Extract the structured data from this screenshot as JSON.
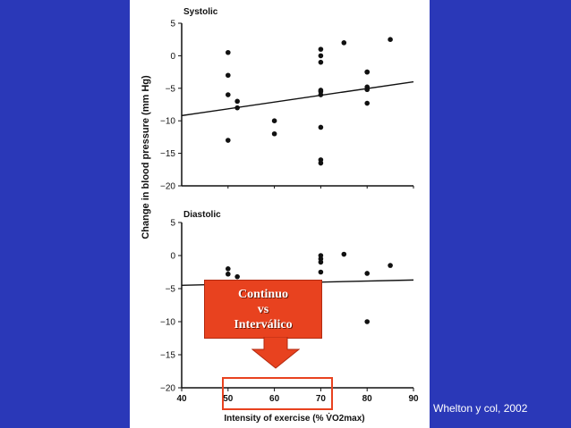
{
  "citation": "Whelton y col, 2002",
  "callout": {
    "line1": "Continuo",
    "line2": "vs",
    "line3": "Interválico",
    "color": "#e8421f"
  },
  "background_color": "#2a38b8",
  "chart_data": [
    {
      "type": "scatter",
      "title": "Systolic",
      "ylabel": "Change in blood pressure (mm Hg)",
      "xlabel": "",
      "xlim": [
        40,
        90
      ],
      "ylim": [
        -20,
        5
      ],
      "yticks": [
        5,
        0,
        -5,
        -10,
        -15,
        -20
      ],
      "x": [
        50,
        50,
        50,
        50,
        52,
        52,
        60,
        60,
        70,
        70,
        70,
        70,
        70,
        70,
        70,
        70,
        70,
        75,
        80,
        80,
        80,
        80,
        80,
        85
      ],
      "y": [
        0.5,
        -3,
        -6,
        -13,
        -7,
        -8,
        -10,
        -12,
        1,
        0,
        -1,
        -5.3,
        -6,
        -11,
        -16,
        -16.5,
        -5.5,
        2,
        -2.5,
        -4.8,
        -5.2,
        -7.3,
        -2.5,
        2.5
      ],
      "trend_line": {
        "x": [
          40,
          90
        ],
        "y": [
          -9.2,
          -4.0
        ]
      }
    },
    {
      "type": "scatter",
      "title": "Diastolic",
      "ylabel": "Change in blood pressure (mm Hg)",
      "xlabel": "Intensity of exercise (% V̇O2max)",
      "xlim": [
        40,
        90
      ],
      "ylim": [
        -20,
        5
      ],
      "yticks": [
        5,
        0,
        -5,
        -10,
        -15,
        -20
      ],
      "xticks": [
        40,
        50,
        60,
        70,
        80,
        90
      ],
      "x": [
        50,
        50,
        52,
        70,
        70,
        70,
        70,
        75,
        80,
        80,
        85
      ],
      "y": [
        -2,
        -2.8,
        -3.2,
        0,
        -0.5,
        -1,
        -2.5,
        0.2,
        -2.7,
        -10,
        -1.5
      ],
      "trend_line": {
        "x": [
          40,
          90
        ],
        "y": [
          -4.5,
          -3.7
        ]
      }
    }
  ]
}
